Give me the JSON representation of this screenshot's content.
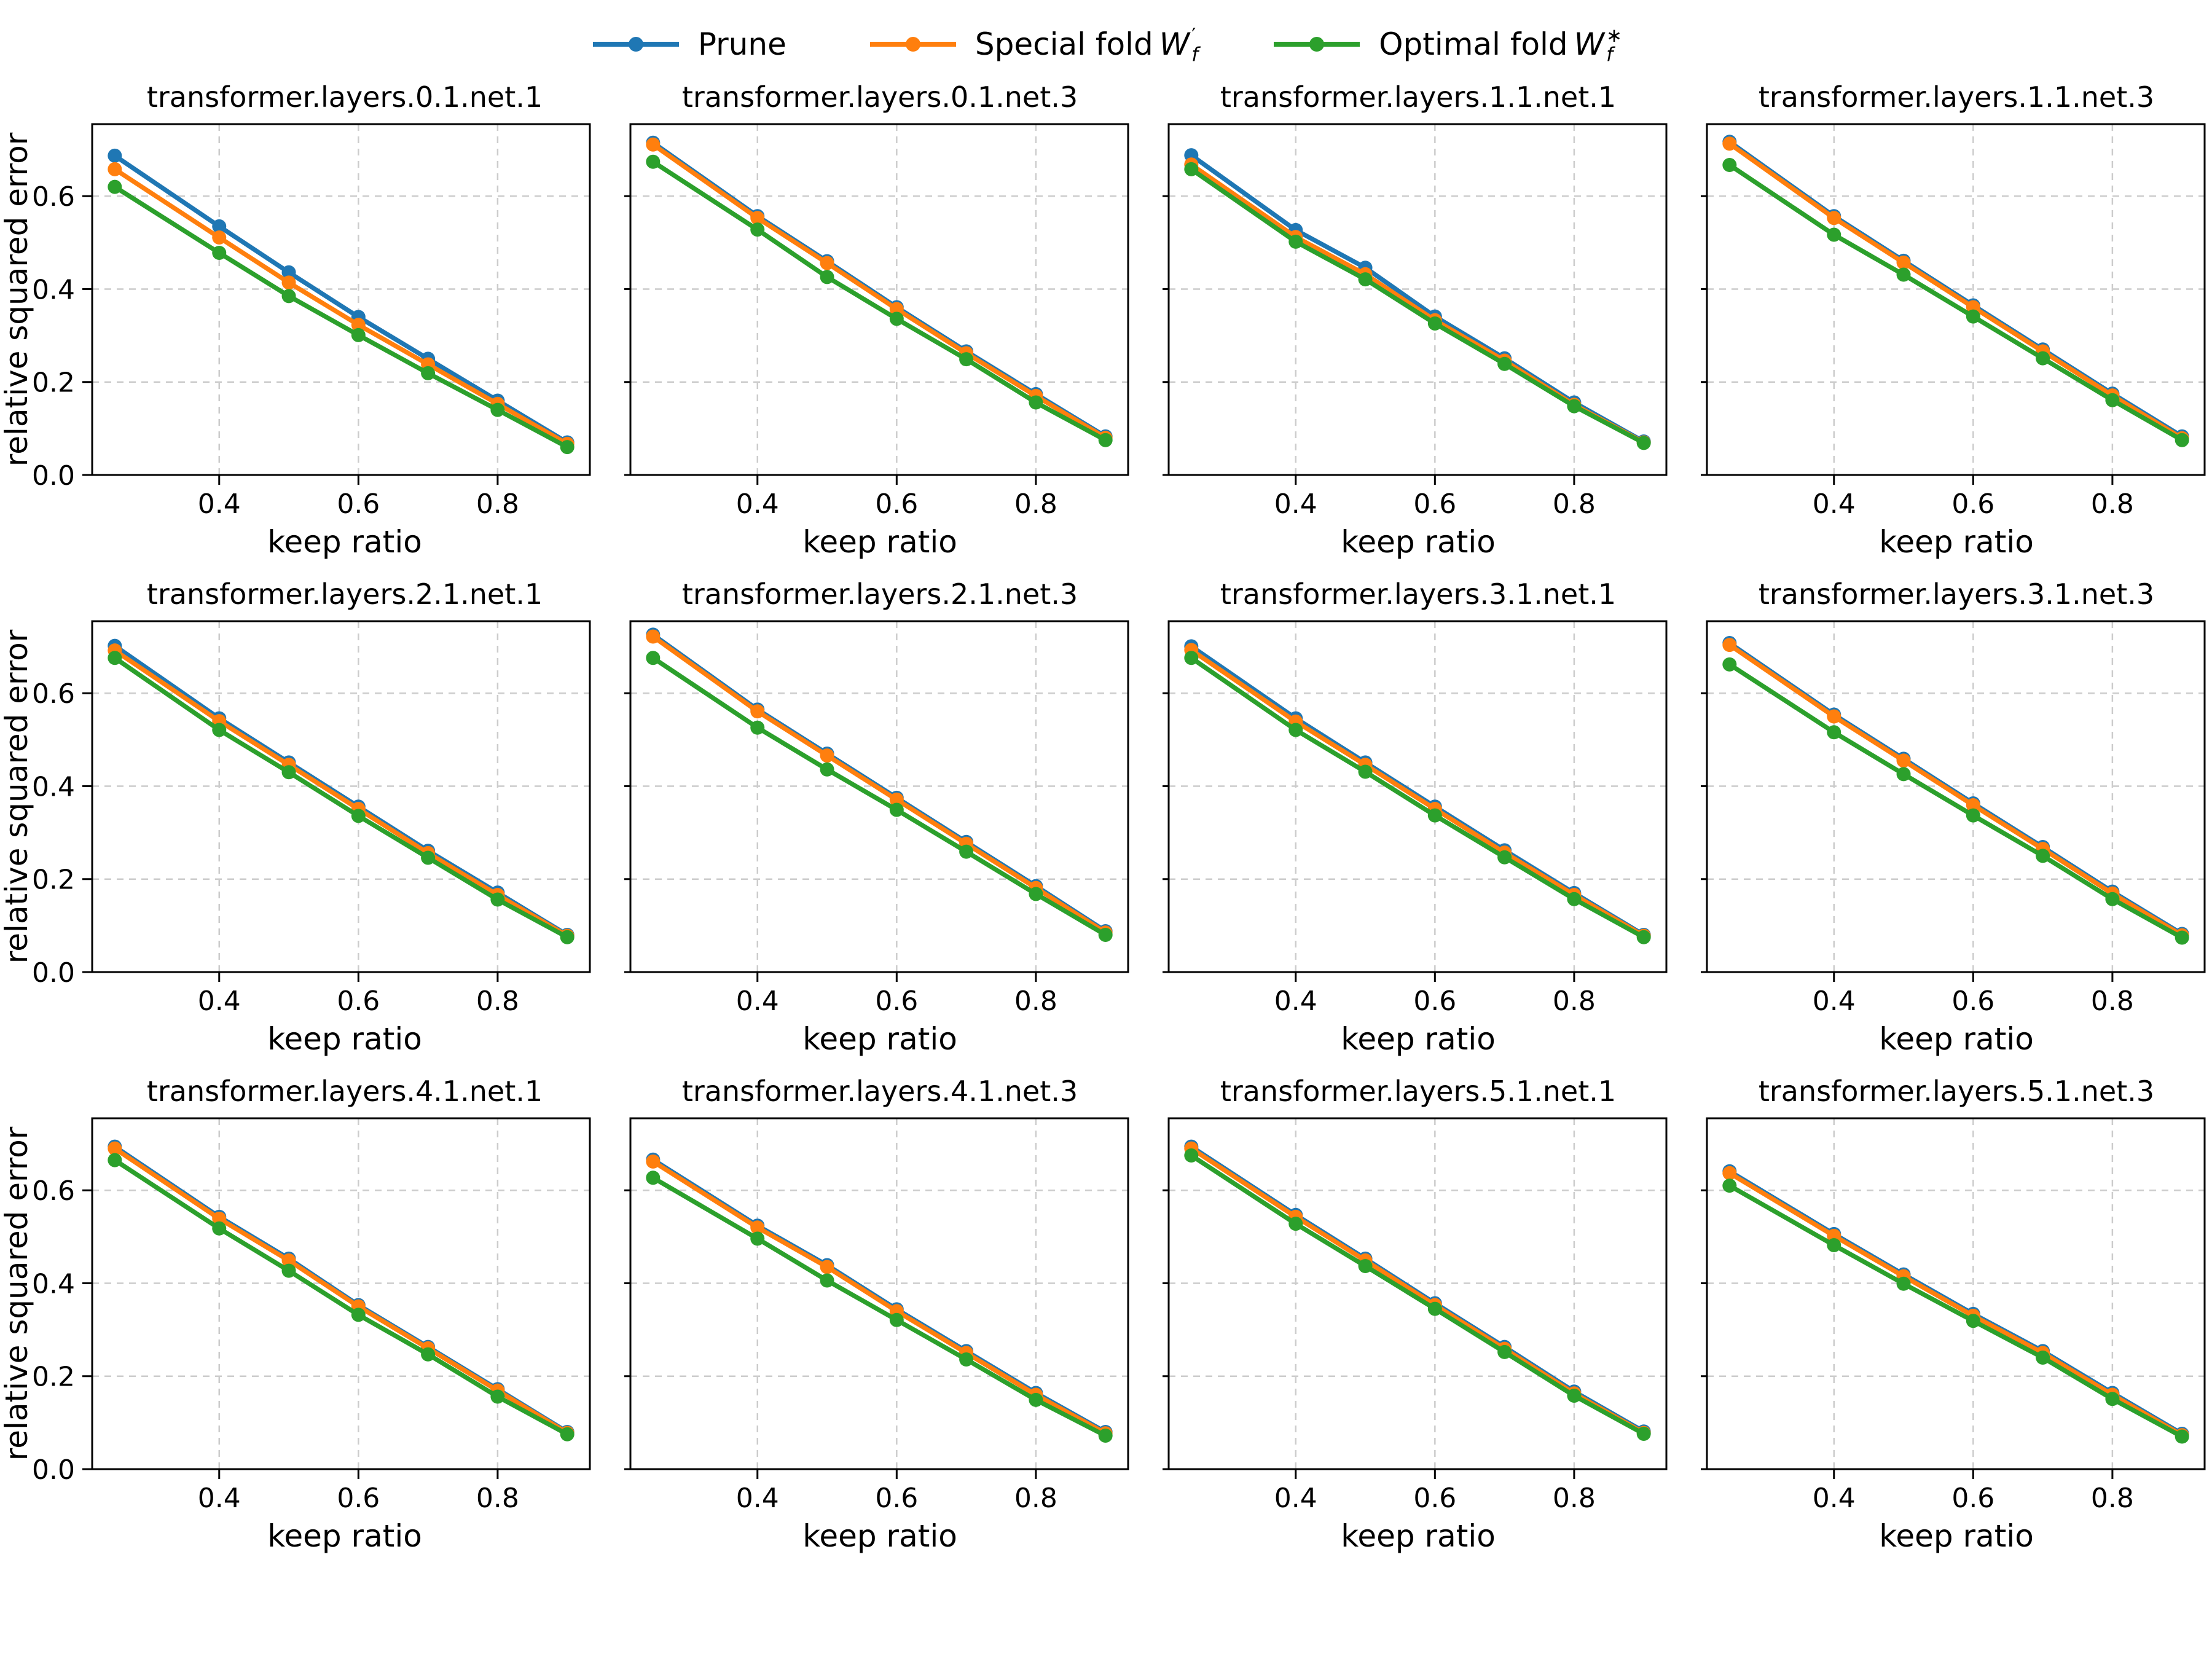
{
  "legend": {
    "items": [
      {
        "label": "Prune",
        "var": "",
        "sup": "",
        "sub": "",
        "color": "#1f77b4"
      },
      {
        "label": "Special fold ",
        "var": "W",
        "sup": "′",
        "sub": "f",
        "color": "#ff7f0e"
      },
      {
        "label": "Optimal fold ",
        "var": "W",
        "sup": "∗",
        "sub": "f",
        "color": "#2ca02c"
      }
    ]
  },
  "axes_config": {
    "xlim": [
      0.2175,
      0.9325
    ],
    "ylim": [
      0,
      0.755
    ],
    "xticks": [
      0.4,
      0.6,
      0.8
    ],
    "yticks": [
      0.0,
      0.2,
      0.4,
      0.6
    ],
    "grid": true,
    "grid_color": "#cccccc",
    "rows": 3,
    "cols": 4,
    "legend_position": "top-center"
  },
  "chart_data": [
    {
      "type": "line",
      "title": "transformer.layers.0.1.net.1",
      "xlabel": "keep ratio",
      "ylabel": "relative squared error",
      "x": [
        0.25,
        0.4,
        0.5,
        0.6,
        0.7,
        0.8,
        0.9
      ],
      "series": [
        {
          "name": "Prune",
          "color": "#1f77b4",
          "values": [
            0.687,
            0.535,
            0.436,
            0.34,
            0.25,
            0.16,
            0.07
          ]
        },
        {
          "name": "Special fold W′f",
          "color": "#ff7f0e",
          "values": [
            0.658,
            0.511,
            0.414,
            0.323,
            0.238,
            0.153,
            0.067
          ]
        },
        {
          "name": "Optimal fold W∗f",
          "color": "#2ca02c",
          "values": [
            0.62,
            0.478,
            0.385,
            0.301,
            0.219,
            0.14,
            0.06
          ]
        }
      ]
    },
    {
      "type": "line",
      "title": "transformer.layers.0.1.net.3",
      "xlabel": "keep ratio",
      "x": [
        0.25,
        0.4,
        0.5,
        0.6,
        0.7,
        0.8,
        0.9
      ],
      "series": [
        {
          "name": "Prune",
          "color": "#1f77b4",
          "values": [
            0.715,
            0.557,
            0.46,
            0.361,
            0.266,
            0.174,
            0.083
          ]
        },
        {
          "name": "Special fold W′f",
          "color": "#ff7f0e",
          "values": [
            0.711,
            0.553,
            0.456,
            0.357,
            0.262,
            0.17,
            0.08
          ]
        },
        {
          "name": "Optimal fold W∗f",
          "color": "#2ca02c",
          "values": [
            0.674,
            0.528,
            0.426,
            0.336,
            0.249,
            0.156,
            0.075
          ]
        }
      ]
    },
    {
      "type": "line",
      "title": "transformer.layers.1.1.net.1",
      "xlabel": "keep ratio",
      "x": [
        0.25,
        0.4,
        0.5,
        0.6,
        0.7,
        0.8,
        0.9
      ],
      "series": [
        {
          "name": "Prune",
          "color": "#1f77b4",
          "values": [
            0.688,
            0.527,
            0.446,
            0.341,
            0.251,
            0.156,
            0.072
          ]
        },
        {
          "name": "Special fold W′f",
          "color": "#ff7f0e",
          "values": [
            0.668,
            0.512,
            0.432,
            0.333,
            0.246,
            0.151,
            0.07
          ]
        },
        {
          "name": "Optimal fold W∗f",
          "color": "#2ca02c",
          "values": [
            0.658,
            0.502,
            0.421,
            0.326,
            0.239,
            0.148,
            0.069
          ]
        }
      ]
    },
    {
      "type": "line",
      "title": "transformer.layers.1.1.net.3",
      "xlabel": "keep ratio",
      "x": [
        0.25,
        0.4,
        0.5,
        0.6,
        0.7,
        0.8,
        0.9
      ],
      "series": [
        {
          "name": "Prune",
          "color": "#1f77b4",
          "values": [
            0.717,
            0.557,
            0.461,
            0.365,
            0.27,
            0.175,
            0.083
          ]
        },
        {
          "name": "Special fold W′f",
          "color": "#ff7f0e",
          "values": [
            0.713,
            0.553,
            0.457,
            0.361,
            0.266,
            0.171,
            0.079
          ]
        },
        {
          "name": "Optimal fold W∗f",
          "color": "#2ca02c",
          "values": [
            0.667,
            0.517,
            0.431,
            0.341,
            0.251,
            0.161,
            0.075
          ]
        }
      ]
    },
    {
      "type": "line",
      "title": "transformer.layers.2.1.net.1",
      "xlabel": "keep ratio",
      "ylabel": "relative squared error",
      "x": [
        0.25,
        0.4,
        0.5,
        0.6,
        0.7,
        0.8,
        0.9
      ],
      "series": [
        {
          "name": "Prune",
          "color": "#1f77b4",
          "values": [
            0.702,
            0.546,
            0.451,
            0.356,
            0.261,
            0.171,
            0.08
          ]
        },
        {
          "name": "Special fold W′f",
          "color": "#ff7f0e",
          "values": [
            0.692,
            0.54,
            0.446,
            0.351,
            0.256,
            0.166,
            0.078
          ]
        },
        {
          "name": "Optimal fold W∗f",
          "color": "#2ca02c",
          "values": [
            0.676,
            0.521,
            0.43,
            0.336,
            0.246,
            0.156,
            0.075
          ]
        }
      ]
    },
    {
      "type": "line",
      "title": "transformer.layers.2.1.net.3",
      "xlabel": "keep ratio",
      "x": [
        0.25,
        0.4,
        0.5,
        0.6,
        0.7,
        0.8,
        0.9
      ],
      "series": [
        {
          "name": "Prune",
          "color": "#1f77b4",
          "values": [
            0.726,
            0.565,
            0.47,
            0.375,
            0.28,
            0.185,
            0.088
          ]
        },
        {
          "name": "Special fold W′f",
          "color": "#ff7f0e",
          "values": [
            0.722,
            0.561,
            0.466,
            0.371,
            0.276,
            0.181,
            0.085
          ]
        },
        {
          "name": "Optimal fold W∗f",
          "color": "#2ca02c",
          "values": [
            0.676,
            0.526,
            0.436,
            0.349,
            0.259,
            0.168,
            0.08
          ]
        }
      ]
    },
    {
      "type": "line",
      "title": "transformer.layers.3.1.net.1",
      "xlabel": "keep ratio",
      "x": [
        0.25,
        0.4,
        0.5,
        0.6,
        0.7,
        0.8,
        0.9
      ],
      "series": [
        {
          "name": "Prune",
          "color": "#1f77b4",
          "values": [
            0.701,
            0.546,
            0.451,
            0.356,
            0.262,
            0.17,
            0.08
          ]
        },
        {
          "name": "Special fold W′f",
          "color": "#ff7f0e",
          "values": [
            0.693,
            0.539,
            0.446,
            0.351,
            0.257,
            0.166,
            0.078
          ]
        },
        {
          "name": "Optimal fold W∗f",
          "color": "#2ca02c",
          "values": [
            0.676,
            0.521,
            0.431,
            0.337,
            0.247,
            0.157,
            0.075
          ]
        }
      ]
    },
    {
      "type": "line",
      "title": "transformer.layers.3.1.net.3",
      "xlabel": "keep ratio",
      "x": [
        0.25,
        0.4,
        0.5,
        0.6,
        0.7,
        0.8,
        0.9
      ],
      "series": [
        {
          "name": "Prune",
          "color": "#1f77b4",
          "values": [
            0.708,
            0.554,
            0.459,
            0.363,
            0.269,
            0.173,
            0.082
          ]
        },
        {
          "name": "Special fold W′f",
          "color": "#ff7f0e",
          "values": [
            0.704,
            0.55,
            0.455,
            0.359,
            0.265,
            0.169,
            0.079
          ]
        },
        {
          "name": "Optimal fold W∗f",
          "color": "#2ca02c",
          "values": [
            0.662,
            0.516,
            0.426,
            0.337,
            0.25,
            0.157,
            0.074
          ]
        }
      ]
    },
    {
      "type": "line",
      "title": "transformer.layers.4.1.net.1",
      "xlabel": "keep ratio",
      "ylabel": "relative squared error",
      "x": [
        0.25,
        0.4,
        0.5,
        0.6,
        0.7,
        0.8,
        0.9
      ],
      "series": [
        {
          "name": "Prune",
          "color": "#1f77b4",
          "values": [
            0.694,
            0.543,
            0.453,
            0.353,
            0.263,
            0.172,
            0.08
          ]
        },
        {
          "name": "Special fold W′f",
          "color": "#ff7f0e",
          "values": [
            0.69,
            0.539,
            0.449,
            0.35,
            0.26,
            0.169,
            0.078
          ]
        },
        {
          "name": "Optimal fold W∗f",
          "color": "#2ca02c",
          "values": [
            0.665,
            0.518,
            0.427,
            0.332,
            0.247,
            0.156,
            0.075
          ]
        }
      ]
    },
    {
      "type": "line",
      "title": "transformer.layers.4.1.net.3",
      "xlabel": "keep ratio",
      "x": [
        0.25,
        0.4,
        0.5,
        0.6,
        0.7,
        0.8,
        0.9
      ],
      "series": [
        {
          "name": "Prune",
          "color": "#1f77b4",
          "values": [
            0.666,
            0.524,
            0.439,
            0.344,
            0.254,
            0.164,
            0.08
          ]
        },
        {
          "name": "Special fold W′f",
          "color": "#ff7f0e",
          "values": [
            0.662,
            0.52,
            0.435,
            0.34,
            0.25,
            0.16,
            0.077
          ]
        },
        {
          "name": "Optimal fold W∗f",
          "color": "#2ca02c",
          "values": [
            0.627,
            0.496,
            0.406,
            0.321,
            0.236,
            0.149,
            0.072
          ]
        }
      ]
    },
    {
      "type": "line",
      "title": "transformer.layers.5.1.net.1",
      "xlabel": "keep ratio",
      "x": [
        0.25,
        0.4,
        0.5,
        0.6,
        0.7,
        0.8,
        0.9
      ],
      "series": [
        {
          "name": "Prune",
          "color": "#1f77b4",
          "values": [
            0.694,
            0.547,
            0.453,
            0.357,
            0.263,
            0.167,
            0.081
          ]
        },
        {
          "name": "Special fold W′f",
          "color": "#ff7f0e",
          "values": [
            0.69,
            0.543,
            0.449,
            0.353,
            0.259,
            0.163,
            0.078
          ]
        },
        {
          "name": "Optimal fold W∗f",
          "color": "#2ca02c",
          "values": [
            0.675,
            0.528,
            0.437,
            0.345,
            0.252,
            0.158,
            0.076
          ]
        }
      ]
    },
    {
      "type": "line",
      "title": "transformer.layers.5.1.net.3",
      "xlabel": "keep ratio",
      "x": [
        0.25,
        0.4,
        0.5,
        0.6,
        0.7,
        0.8,
        0.9
      ],
      "series": [
        {
          "name": "Prune",
          "color": "#1f77b4",
          "values": [
            0.641,
            0.506,
            0.419,
            0.334,
            0.254,
            0.164,
            0.076
          ]
        },
        {
          "name": "Special fold W′f",
          "color": "#ff7f0e",
          "values": [
            0.637,
            0.502,
            0.415,
            0.33,
            0.25,
            0.16,
            0.073
          ]
        },
        {
          "name": "Optimal fold W∗f",
          "color": "#2ca02c",
          "values": [
            0.61,
            0.482,
            0.399,
            0.319,
            0.24,
            0.151,
            0.07
          ]
        }
      ]
    }
  ]
}
